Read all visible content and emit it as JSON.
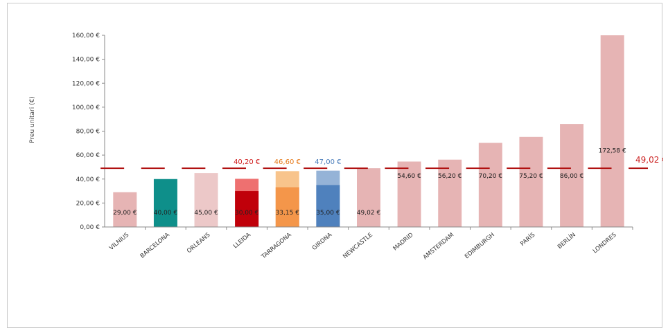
{
  "chart_data": {
    "type": "bar",
    "ylabel": "Preu unitari (€)",
    "xlabel": "",
    "title": "",
    "ylim": [
      0,
      160
    ],
    "yticks": [
      0,
      20,
      40,
      60,
      80,
      100,
      120,
      140,
      160
    ],
    "ytick_labels": [
      "0,00 €",
      "20,00 €",
      "40,00 €",
      "60,00 €",
      "80,00 €",
      "100,00 €",
      "120,00 €",
      "140,00 €",
      "160,00 €"
    ],
    "categories": [
      "VILNIUS",
      "BARCELONA",
      "ORLEANS",
      "LLEIDA",
      "TARRAGONA",
      "GIRONA",
      "NEWCASTLE",
      "MADRID",
      "AMSTERDAM",
      "EDIMBURGH",
      "PARÍS",
      "BERLÍN",
      "LONDRES"
    ],
    "values": [
      29.0,
      40.0,
      45.0,
      30.0,
      33.15,
      35.0,
      49.02,
      54.6,
      56.2,
      70.2,
      75.2,
      86.0,
      172.58
    ],
    "value_labels": [
      "29,00 €",
      "40,00 €",
      "45,00 €",
      "30,00 €",
      "33,15 €",
      "35,00 €",
      "49,02 €",
      "54,60 €",
      "56,20 €",
      "70,20 €",
      "75,20 €",
      "86,00 €",
      "172,58 €"
    ],
    "stacked_upper_values": [
      null,
      null,
      null,
      40.2,
      46.6,
      47.0,
      null,
      null,
      null,
      null,
      null,
      null,
      null
    ],
    "stacked_upper_labels": [
      "",
      "",
      "",
      "40,20 €",
      "46,60 €",
      "47,00 €",
      "",
      "",
      "",
      "",
      "",
      "",
      ""
    ],
    "bar_colors": [
      "#e6b4b4",
      "#0e8f8a",
      "#ecc8c8",
      "#c0000a",
      "#f4964a",
      "#4f81bd",
      "#e6b4b4",
      "#e6b4b4",
      "#e6b4b4",
      "#e6b4b4",
      "#e6b4b4",
      "#e6b4b4",
      "#e6b4b4"
    ],
    "upper_colors": [
      "",
      "",
      "",
      "#ee7070",
      "#f8c48c",
      "#95b3d7",
      "",
      "",
      "",
      "",
      "",
      "",
      ""
    ],
    "upper_label_colors": [
      "",
      "",
      "",
      "#d02020",
      "#e67a1a",
      "#4f81bd",
      "",
      "",
      "",
      "",
      "",
      "",
      ""
    ],
    "reference_line": {
      "value": 49.02,
      "label": "49,02 €",
      "color": "#b01010"
    },
    "grid": false,
    "legend": "none"
  }
}
